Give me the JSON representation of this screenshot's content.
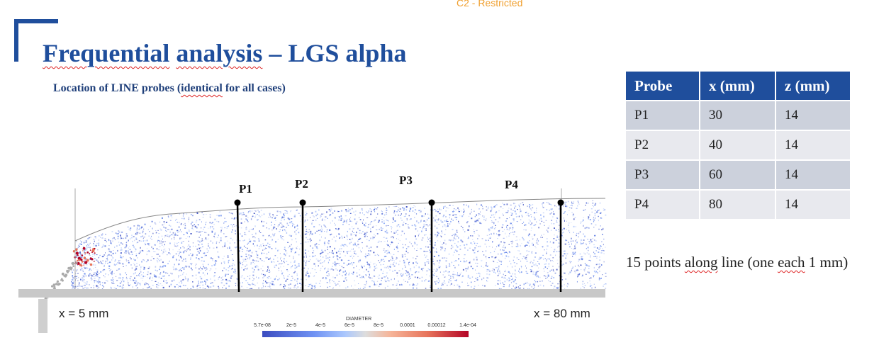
{
  "header": {
    "classification": "C2 - Restricted",
    "title_parts": [
      "Frequential",
      " ",
      "analysis",
      " – LGS alpha"
    ],
    "subtitle_parts": [
      "Location of LINE probes (",
      "identical",
      " for all cases)"
    ]
  },
  "simulation": {
    "x_start_label": "x = 5 mm",
    "x_end_label": "x = 80 mm",
    "probes": [
      {
        "label": "P1"
      },
      {
        "label": "P2"
      },
      {
        "label": "P3"
      },
      {
        "label": "P4"
      }
    ],
    "colorbar": {
      "title": "DIAMETER",
      "ticks": [
        "5.7e-08",
        "2e-5",
        "4e-5",
        "6e-5",
        "8e-5",
        "0.0001",
        "0.00012",
        "1.4e-04"
      ]
    }
  },
  "probe_table": {
    "headers": [
      "Probe",
      "x (mm)",
      "z (mm)"
    ],
    "rows": [
      [
        "P1",
        "30",
        "14"
      ],
      [
        "P2",
        "40",
        "14"
      ],
      [
        "P3",
        "60",
        "14"
      ],
      [
        "P4",
        "80",
        "14"
      ]
    ]
  },
  "note_parts": [
    "15 points ",
    "along",
    " line (one ",
    "each",
    " 1 mm)"
  ],
  "colors": {
    "brand_blue": "#1f4e9c",
    "classification_orange": "#f0a030",
    "particle_blue": "#3b4cc0",
    "particle_red": "#b40426"
  }
}
